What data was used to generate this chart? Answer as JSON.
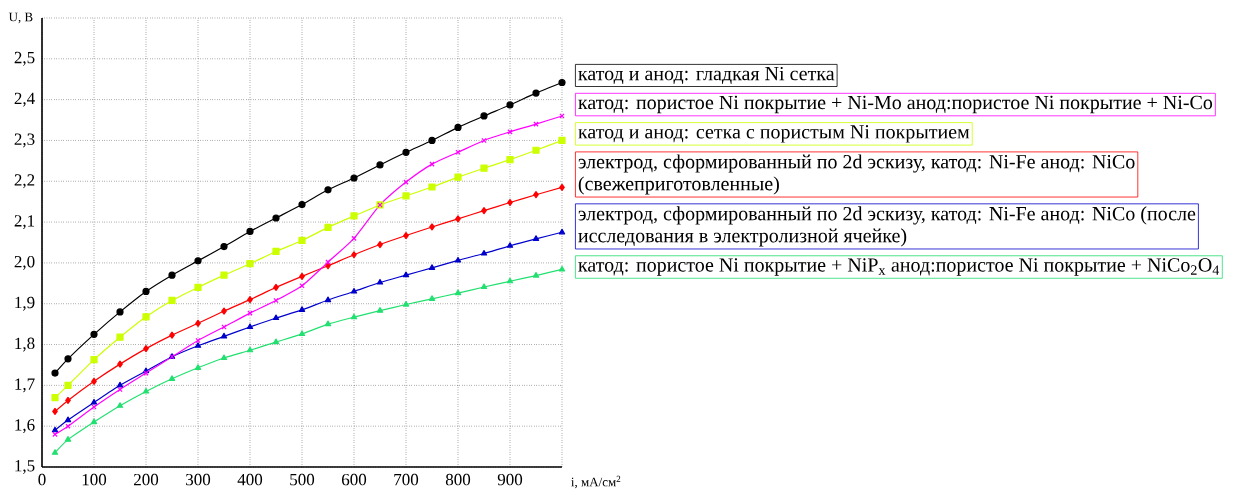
{
  "chart_data": {
    "type": "line",
    "xlabel": "i, мА/см$^{2}$",
    "ylabel": "U, В",
    "x": [
      25,
      50,
      100,
      150,
      200,
      250,
      300,
      350,
      400,
      450,
      500,
      550,
      600,
      650,
      700,
      750,
      800,
      850,
      900,
      950,
      1000
    ],
    "xlim": [
      0,
      1000
    ],
    "ylim": [
      1.5,
      2.6
    ],
    "xticks": [
      0,
      100,
      200,
      300,
      400,
      500,
      600,
      700,
      800,
      900,
      {
        "value": 1000,
        "label": null
      }
    ],
    "yticks": [
      {
        "value": 1.5,
        "label": "1,5"
      },
      {
        "value": 1.6,
        "label": "1,6"
      },
      {
        "value": 1.7,
        "label": "1,7"
      },
      {
        "value": 1.8,
        "label": "1,8"
      },
      {
        "value": 1.9,
        "label": "1,9"
      },
      {
        "value": 2.0,
        "label": "2,0"
      },
      {
        "value": 2.1,
        "label": "2,1"
      },
      {
        "value": 2.2,
        "label": "2,2"
      },
      {
        "value": 2.3,
        "label": "2,3"
      },
      {
        "value": 2.4,
        "label": "2,4"
      },
      {
        "value": 2.5,
        "label": "2,5"
      },
      {
        "value": 2.6,
        "label": null
      }
    ],
    "grid": true,
    "legend": "right",
    "line_style": "solid",
    "series": [
      {
        "name": "катод и анод: гладкая Ni сетка",
        "color": "#000000",
        "marker": "circle",
        "values": [
          1.73,
          1.765,
          1.825,
          1.88,
          1.93,
          1.97,
          2.005,
          2.04,
          2.077,
          2.11,
          2.143,
          2.179,
          2.208,
          2.24,
          2.271,
          2.3,
          2.332,
          2.36,
          2.387,
          2.416,
          2.442
        ]
      },
      {
        "name": "катод: пористое Ni покрытие + Ni-Mo   анод:пористое Ni покрытие + Ni-Co",
        "color": "#ff00ff",
        "marker": "cross",
        "values": [
          1.58,
          1.6,
          1.647,
          1.69,
          1.73,
          1.77,
          1.81,
          1.843,
          1.877,
          1.908,
          1.944,
          2.002,
          2.06,
          2.142,
          2.198,
          2.242,
          2.271,
          2.3,
          2.321,
          2.34,
          2.36
        ]
      },
      {
        "name": "катод и анод: сетка с пористым Ni покрытием",
        "color": "#ccff00",
        "marker": "square",
        "values": [
          1.67,
          1.7,
          1.763,
          1.818,
          1.868,
          1.908,
          1.94,
          1.97,
          1.998,
          2.028,
          2.055,
          2.087,
          2.115,
          2.142,
          2.164,
          2.186,
          2.21,
          2.232,
          2.253,
          2.276,
          2.3
        ]
      },
      {
        "name": "электрод, сформированный по 2d эскизу, катод: Ni-Fe    анод: NiCo (свежеприготовленные)",
        "color": "#ff0000",
        "marker": "diamond",
        "values": [
          1.636,
          1.663,
          1.71,
          1.752,
          1.79,
          1.823,
          1.852,
          1.882,
          1.91,
          1.94,
          1.967,
          1.993,
          2.02,
          2.045,
          2.067,
          2.088,
          2.108,
          2.128,
          2.148,
          2.167,
          2.185
        ]
      },
      {
        "name": "электрод, сформированный по 2d эскизу, катод: Ni-Fe    анод: NiCo (после исследования в электролизной ячейке)",
        "color": "#0000cc",
        "marker": "triangle",
        "values": [
          1.59,
          1.615,
          1.658,
          1.7,
          1.735,
          1.77,
          1.797,
          1.82,
          1.843,
          1.865,
          1.885,
          1.909,
          1.93,
          1.952,
          1.97,
          1.988,
          2.006,
          2.023,
          2.042,
          2.059,
          2.075
        ]
      },
      {
        "name": "катод: пористое Ni покрытие + NiP$_{x}$   анод:пористое Ni покрытие + NiCo$_{2}$O$_{4}$",
        "color": "#22e070",
        "marker": "triangle",
        "values": [
          1.535,
          1.567,
          1.61,
          1.65,
          1.685,
          1.716,
          1.743,
          1.767,
          1.786,
          1.806,
          1.826,
          1.85,
          1.867,
          1.883,
          1.898,
          1.912,
          1.926,
          1.941,
          1.955,
          1.969,
          1.984
        ]
      }
    ]
  }
}
